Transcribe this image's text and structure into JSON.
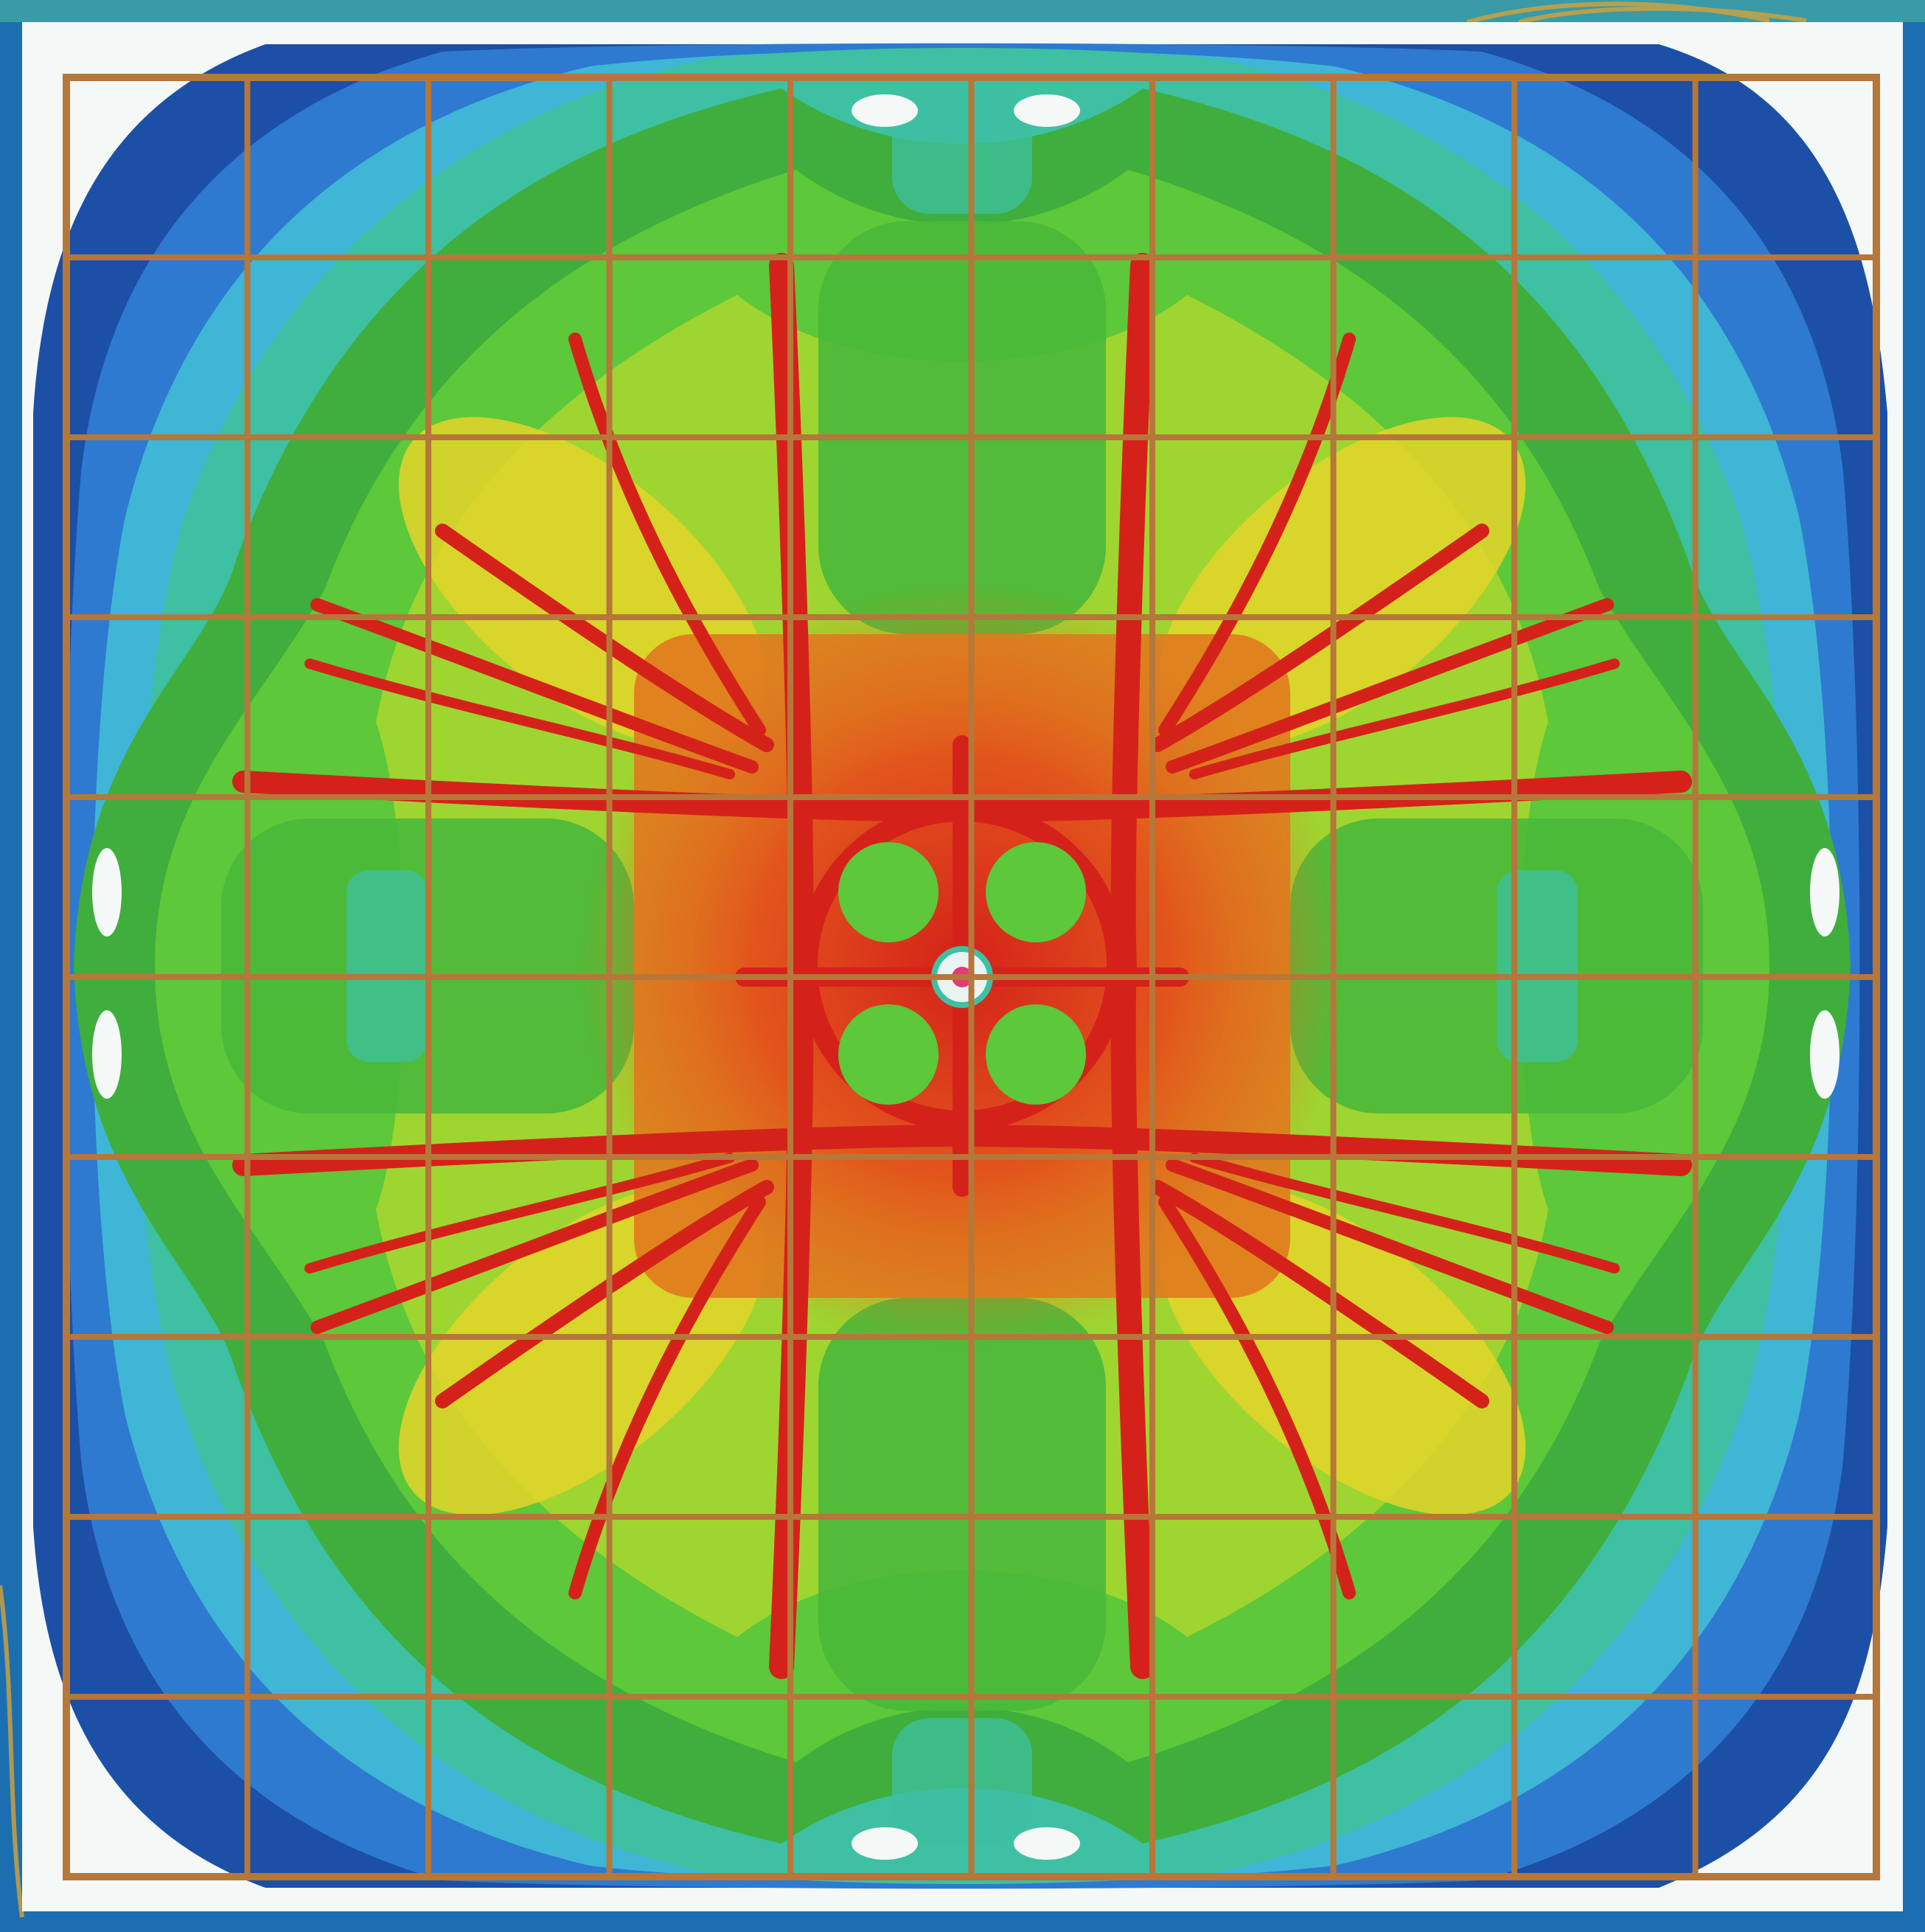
{
  "image": {
    "subject": "contour-map",
    "colors": {
      "border_left": "#1b6fb0",
      "border_top": "#3a9aa6",
      "border_accent": "#d4a23a",
      "frame": "#f4f8f6",
      "deep_blue": "#1c4fa6",
      "mid_blue": "#2e7ad0",
      "light_blue": "#3fb6d6",
      "teal": "#3ec0a2",
      "green": "#3fae3c",
      "bright_green": "#5cc83a",
      "yellow_green": "#9fd531",
      "yellow": "#e4d52a",
      "orange": "#e07a1e",
      "red": "#d4221a",
      "grid": "#b5773a"
    }
  }
}
